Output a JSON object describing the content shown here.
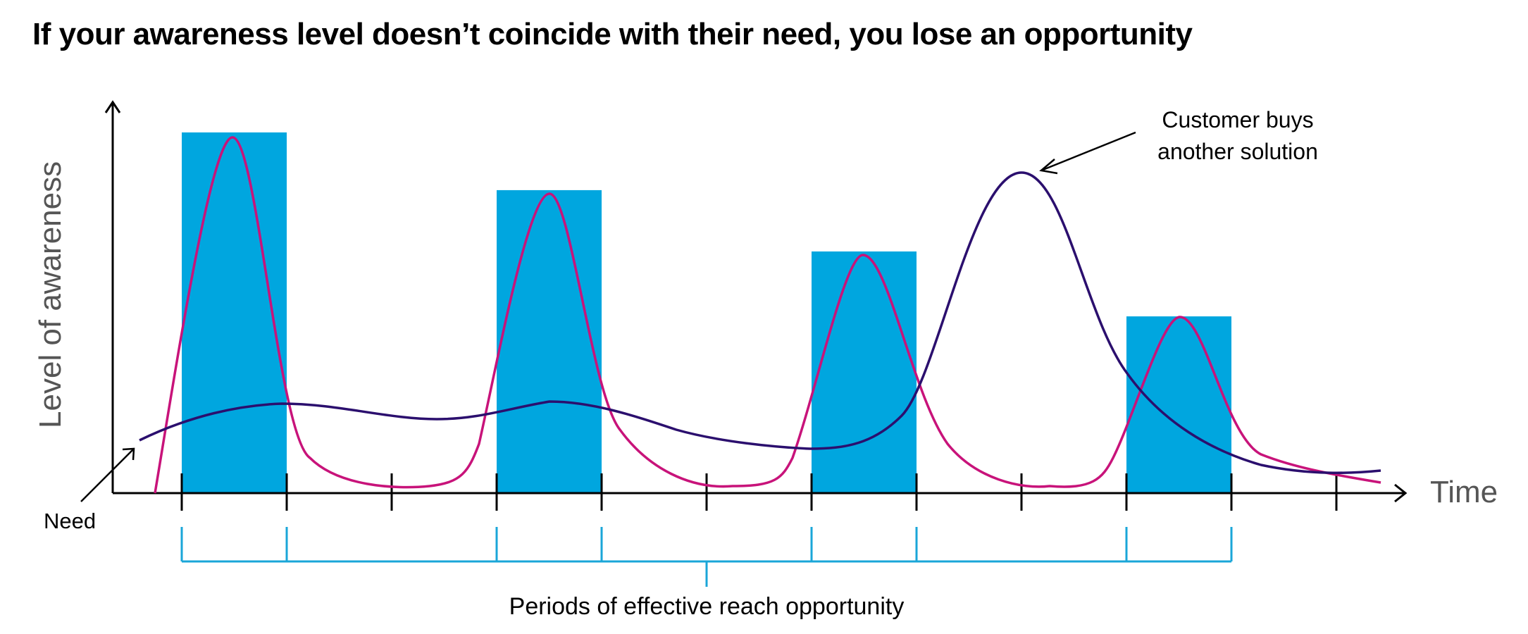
{
  "title": "If your awareness level doesn’t coincide with their need, you lose an opportunity",
  "y_axis_label": "Level of awareness",
  "x_axis_label": "Time",
  "need_label": "Need",
  "annotation": {
    "line1": "Customer buys",
    "line2": "another solution"
  },
  "bracket_label": "Periods of effective reach opportunity",
  "colors": {
    "bars": "#00a6df",
    "awareness_curve": "#c8137a",
    "need_curve": "#2b0f6e",
    "bracket": "#1aa6d8",
    "axis": "#000000"
  },
  "chart_data": {
    "type": "diagram",
    "bars": [
      {
        "period": 1,
        "level": 100
      },
      {
        "period": 4,
        "level": 84
      },
      {
        "period": 7,
        "level": 67
      },
      {
        "period": 10,
        "level": 49
      }
    ]
  }
}
